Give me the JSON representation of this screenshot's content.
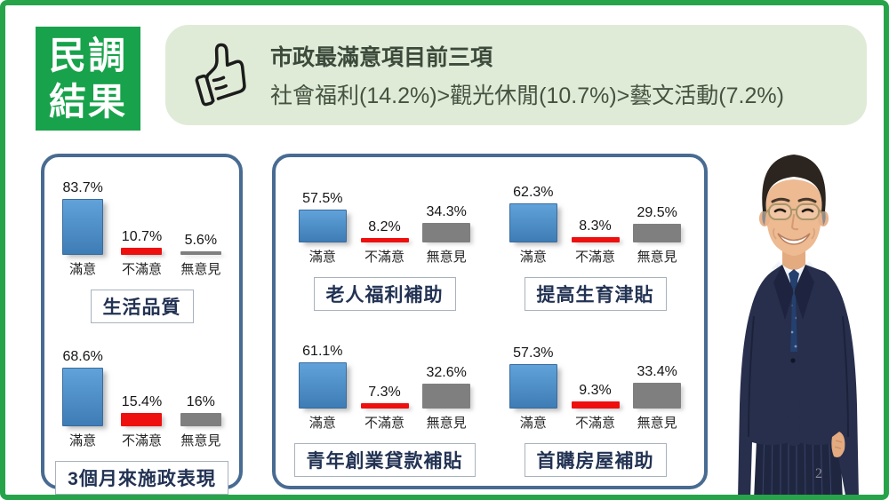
{
  "slide": {
    "badge": {
      "line1": "民調",
      "line2": "結果"
    },
    "header": {
      "title": "市政最滿意項目前三項",
      "subtitle": "社會福利(14.2%)>觀光休閒(10.7%)>藝文活動(7.2%)",
      "icon": "thumbs-up-icon"
    },
    "page_number": "2",
    "colors": {
      "slide_border_green": "#27a449",
      "badge_green": "#18a24b",
      "pill_background": "#dfebd7",
      "panel_border_blue": "#486b92",
      "bar_satisfied_blue": "#3e7cb5",
      "bar_dissatisfied_red": "#ee0f0f",
      "bar_no_opinion_gray": "#7f7f7f",
      "chart_title_navy": "#223253"
    }
  },
  "chart_data": {
    "type": "bar",
    "categories": [
      "滿意",
      "不滿意",
      "無意見"
    ],
    "legend_position": "none",
    "grid": false,
    "value_unit": "%",
    "panels": [
      {
        "name": "overall-ratings",
        "charts": [
          {
            "title": "生活品質",
            "values": [
              83.7,
              10.7,
              5.6
            ],
            "labels": [
              "83.7%",
              "10.7%",
              "5.6%"
            ]
          },
          {
            "title": "3個月來施政表現",
            "values": [
              68.6,
              15.4,
              16
            ],
            "labels": [
              "68.6%",
              "15.4%",
              "16%"
            ]
          }
        ]
      },
      {
        "name": "policy-ratings",
        "charts": [
          {
            "title": "老人福利補助",
            "values": [
              57.5,
              8.2,
              34.3
            ],
            "labels": [
              "57.5%",
              "8.2%",
              "34.3%"
            ]
          },
          {
            "title": "提高生育津貼",
            "values": [
              62.3,
              8.3,
              29.5
            ],
            "labels": [
              "62.3%",
              "8.3%",
              "29.5%"
            ]
          },
          {
            "title": "青年創業貸款補貼",
            "values": [
              61.1,
              7.3,
              32.6
            ],
            "labels": [
              "61.1%",
              "7.3%",
              "32.6%"
            ]
          },
          {
            "title": "首購房屋補助",
            "values": [
              57.3,
              9.3,
              33.4
            ],
            "labels": [
              "57.3%",
              "9.3%",
              "33.4%"
            ]
          }
        ]
      }
    ]
  }
}
